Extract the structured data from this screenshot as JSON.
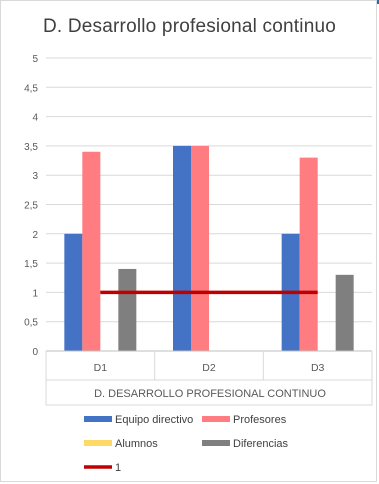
{
  "chart_data": {
    "type": "bar",
    "title": "D. Desarrollo profesional continuo",
    "xlabel": "D. DESARROLLO PROFESIONAL CONTINUO",
    "ylabel": "",
    "categories": [
      "D1",
      "D2",
      "D3"
    ],
    "ylim": [
      0,
      5
    ],
    "ytick_step": 0.5,
    "yticks": [
      "0",
      "0,5",
      "1",
      "1,5",
      "2",
      "2,5",
      "3",
      "3,5",
      "4",
      "4,5",
      "5"
    ],
    "grid": true,
    "legend_position": "bottom",
    "series": [
      {
        "name": "Equipo directivo",
        "kind": "bar",
        "color": "#4472c4",
        "values": [
          2,
          3.5,
          2
        ]
      },
      {
        "name": "Profesores",
        "kind": "bar",
        "color": "#ff7c80",
        "values": [
          3.4,
          3.5,
          3.3
        ]
      },
      {
        "name": "Alumnos",
        "kind": "bar",
        "color": "#ffd966",
        "values": [
          0,
          0,
          0
        ]
      },
      {
        "name": "Diferencias",
        "kind": "bar",
        "color": "#7f7f7f",
        "values": [
          1.4,
          0,
          1.3
        ]
      },
      {
        "name": "1",
        "kind": "line",
        "color": "#c00000",
        "values": [
          1,
          1,
          1
        ]
      }
    ]
  }
}
